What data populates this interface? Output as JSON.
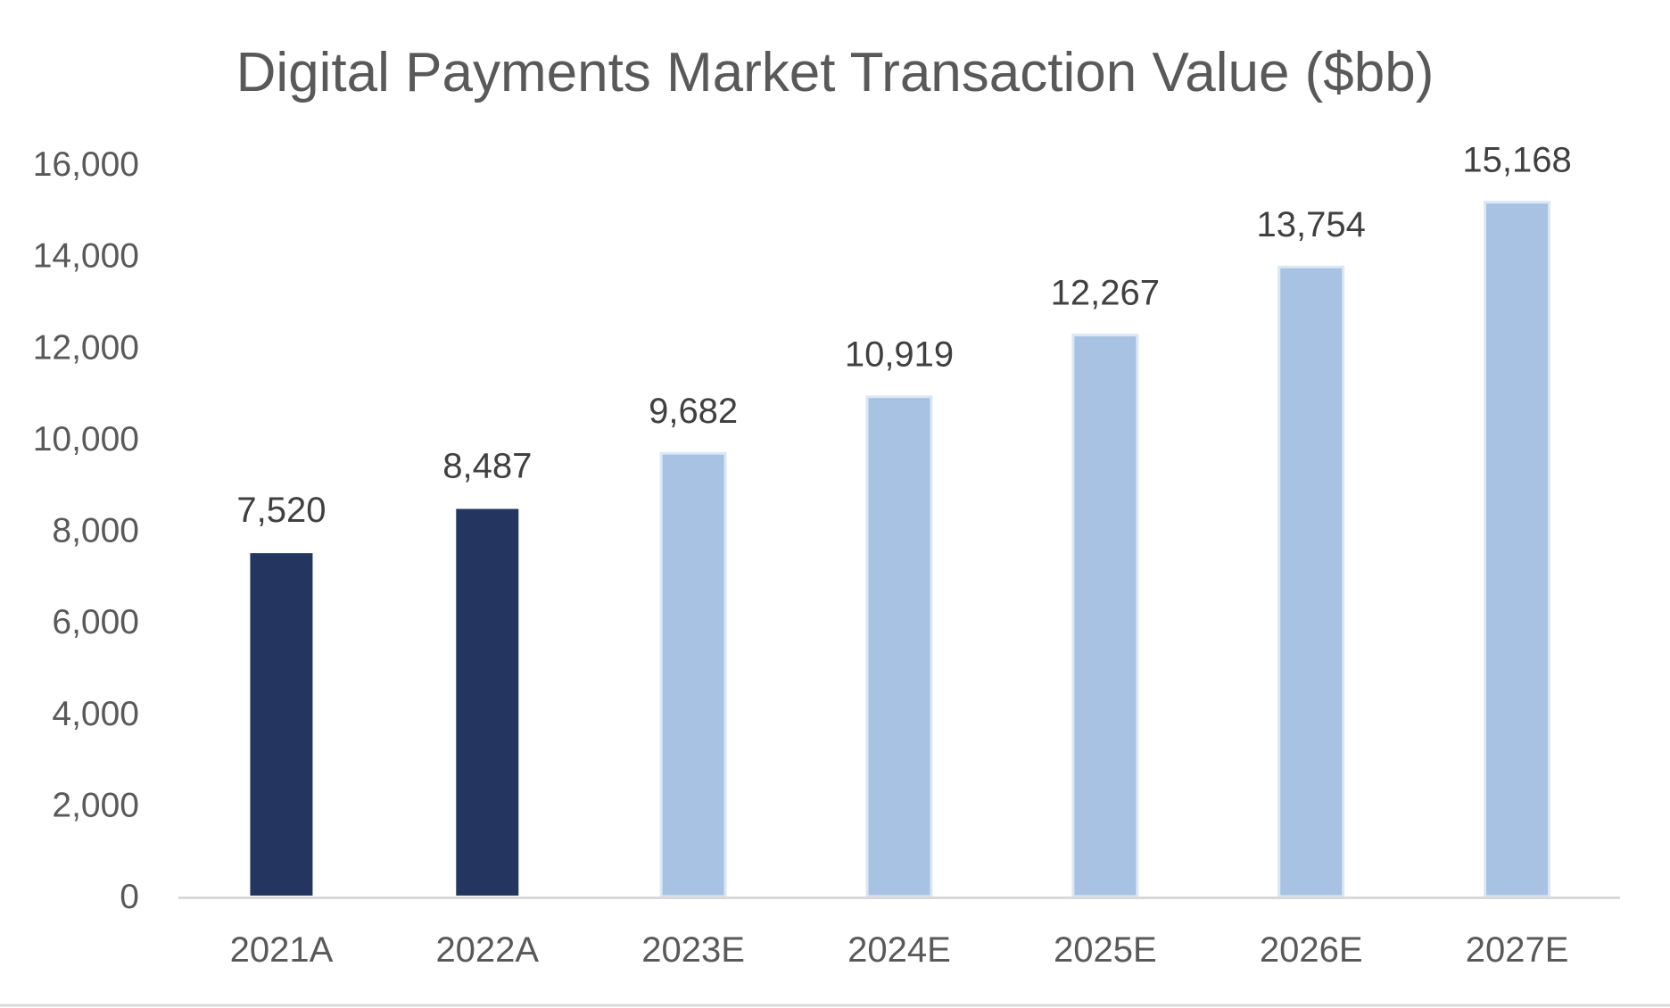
{
  "chart_data": {
    "type": "bar",
    "title": "Digital Payments Market Transaction Value ($bb)",
    "xlabel": "",
    "ylabel": "",
    "categories": [
      "2021A",
      "2022A",
      "2023E",
      "2024E",
      "2025E",
      "2026E",
      "2027E"
    ],
    "values": [
      7520,
      8487,
      9682,
      10919,
      12267,
      13754,
      15168
    ],
    "data_labels": [
      "7,520",
      "8,487",
      "9,682",
      "10,919",
      "12,267",
      "13,754",
      "15,168"
    ],
    "ylim": [
      0,
      16000
    ],
    "yticks": [
      0,
      2000,
      4000,
      6000,
      8000,
      10000,
      12000,
      14000,
      16000
    ],
    "ytick_labels": [
      "0",
      "2,000",
      "4,000",
      "6,000",
      "8,000",
      "10,000",
      "12,000",
      "14,000",
      "16,000"
    ],
    "grid": false,
    "legend": "none",
    "colors": {
      "actual": "#243660",
      "estimate": "#a7c2e3",
      "estimate_outline": "#dce7f5",
      "axis": "#d9d9d9",
      "text": "#595959"
    },
    "bar_color_keys": [
      "actual",
      "actual",
      "estimate",
      "estimate",
      "estimate",
      "estimate",
      "estimate"
    ]
  }
}
